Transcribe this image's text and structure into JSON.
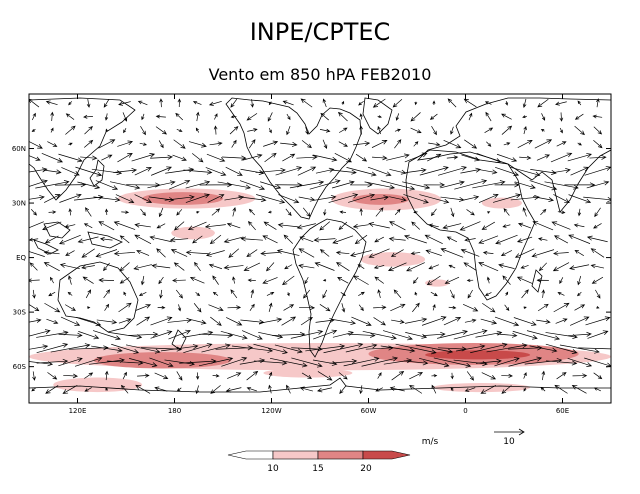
{
  "title": "INPE/CPTEC",
  "subtitle": "Vento em 850 hPA FEB2010",
  "map": {
    "lon_range": [
      90,
      450
    ],
    "lat_range": [
      -80,
      90
    ],
    "lat_ticks": [
      {
        "lat": 60,
        "label": "60N"
      },
      {
        "lat": 30,
        "label": "30N"
      },
      {
        "lat": 0,
        "label": "EQ"
      },
      {
        "lat": -30,
        "label": "30S"
      },
      {
        "lat": -60,
        "label": "60S"
      }
    ],
    "lon_ticks": [
      {
        "lon": 120,
        "label": "120E"
      },
      {
        "lon": 180,
        "label": "180"
      },
      {
        "lon": 240,
        "label": "120W"
      },
      {
        "lon": 300,
        "label": "60W"
      },
      {
        "lon": 360,
        "label": "0"
      },
      {
        "lon": 420,
        "label": "60E"
      }
    ],
    "shading": {
      "levels": [
        10,
        15,
        20
      ],
      "colors": [
        "#f6c8c8",
        "#e08585",
        "#c84a4a"
      ],
      "regions": [
        {
          "lon": [
            145,
            230
          ],
          "lat": [
            27,
            38
          ],
          "level": 1
        },
        {
          "lon": [
            160,
            210
          ],
          "lat": [
            29,
            36
          ],
          "level": 2
        },
        {
          "lon": [
            277,
            345
          ],
          "lat": [
            26,
            38
          ],
          "level": 1
        },
        {
          "lon": [
            290,
            325
          ],
          "lat": [
            29,
            35
          ],
          "level": 2
        },
        {
          "lon": [
            370,
            395
          ],
          "lat": [
            27,
            33
          ],
          "level": 1
        },
        {
          "lon": [
            178,
            205
          ],
          "lat": [
            10,
            17
          ],
          "level": 1
        },
        {
          "lon": [
            295,
            335
          ],
          "lat": [
            -5,
            3
          ],
          "level": 1
        },
        {
          "lon": [
            90,
            450
          ],
          "lat": [
            -62,
            -47
          ],
          "level": 1
        },
        {
          "lon": [
            130,
            215
          ],
          "lat": [
            -61,
            -52
          ],
          "level": 2
        },
        {
          "lon": [
            300,
            430
          ],
          "lat": [
            -59,
            -47
          ],
          "level": 2
        },
        {
          "lon": [
            335,
            400
          ],
          "lat": [
            -56,
            -51
          ],
          "level": 3
        },
        {
          "lon": [
            105,
            160
          ],
          "lat": [
            -74,
            -66
          ],
          "level": 1
        },
        {
          "lon": [
            235,
            290
          ],
          "lat": [
            -66,
            -61
          ],
          "level": 1
        },
        {
          "lon": [
            340,
            400
          ],
          "lat": [
            -74,
            -69
          ],
          "level": 1
        },
        {
          "lon": [
            335,
            350
          ],
          "lat": [
            -16,
            -12
          ],
          "level": 1
        }
      ]
    },
    "wind": {
      "type": "vector",
      "reference_speed": 10,
      "zonal_profile_ms": [
        {
          "lat": 80,
          "u": -2
        },
        {
          "lat": 50,
          "u": 8
        },
        {
          "lat": 35,
          "u": 11
        },
        {
          "lat": 20,
          "u": -5
        },
        {
          "lat": 5,
          "u": -6
        },
        {
          "lat": -10,
          "u": -4
        },
        {
          "lat": -25,
          "u": 2
        },
        {
          "lat": -45,
          "u": 11
        },
        {
          "lat": -55,
          "u": 14
        },
        {
          "lat": -70,
          "u": -3
        }
      ]
    }
  },
  "legend": {
    "units_label": "m/s",
    "ref_label": "10",
    "colorbar_labels": [
      "10",
      "15",
      "20"
    ]
  }
}
